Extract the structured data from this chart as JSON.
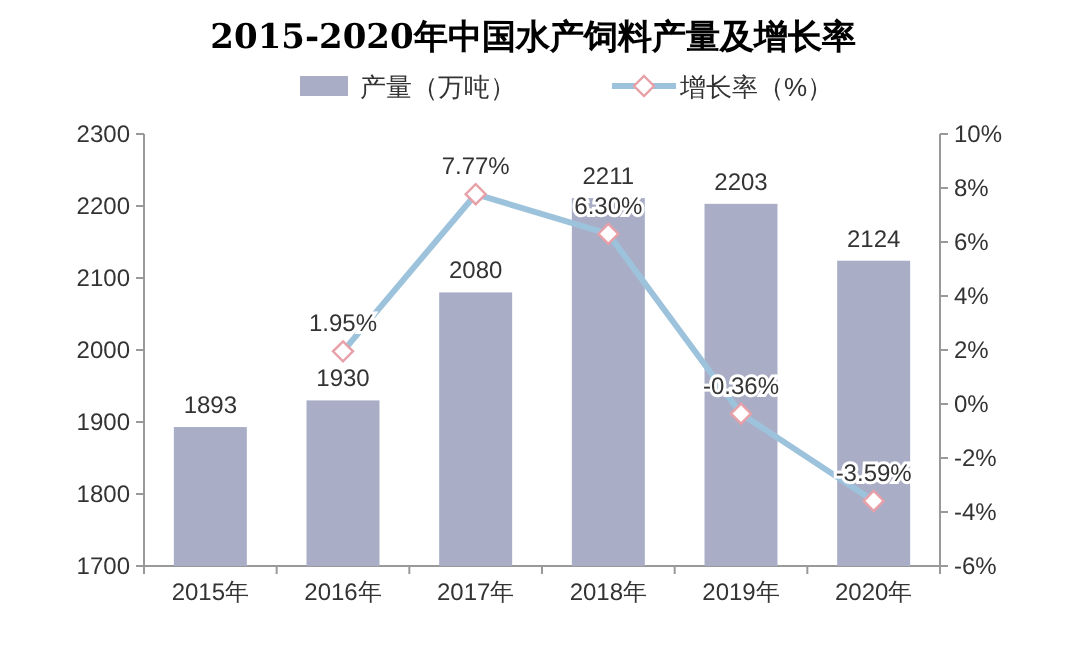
{
  "chart_data": {
    "type": "bar",
    "title": "2015-2020年中国水产饲料产量及增长率",
    "categories": [
      "2015年",
      "2016年",
      "2017年",
      "2018年",
      "2019年",
      "2020年"
    ],
    "series": [
      {
        "name": "产量（万吨）",
        "color": "#a9aec6",
        "values": [
          1893,
          1930,
          2080,
          2211,
          2203,
          2124
        ],
        "value_labels": [
          "1893",
          "1930",
          "2080",
          "2211",
          "2203",
          "2124"
        ]
      },
      {
        "name": "增长率（%）",
        "type": "line",
        "axis": "y2",
        "color": "#9dc3dc",
        "marker": "diamond",
        "values": [
          null,
          1.95,
          7.77,
          6.3,
          -0.36,
          -3.59
        ],
        "value_labels": [
          null,
          "1.95%",
          "7.77%",
          "6.30%",
          "-0.36%",
          "-3.59%"
        ]
      }
    ],
    "ylim": [
      1700,
      2300
    ],
    "yticks": [
      1700,
      1800,
      1900,
      2000,
      2100,
      2200,
      2300
    ],
    "y2lim": [
      -6,
      10
    ],
    "y2ticks": [
      {
        "value": -6,
        "label": "-6%"
      },
      {
        "value": -4,
        "label": "-4%"
      },
      {
        "value": -2,
        "label": "-2%"
      },
      {
        "value": 0,
        "label": "0%"
      },
      {
        "value": 2,
        "label": "2%"
      },
      {
        "value": 4,
        "label": "4%"
      },
      {
        "value": 6,
        "label": "6%"
      },
      {
        "value": 8,
        "label": "8%"
      },
      {
        "value": 10,
        "label": "10%"
      }
    ],
    "legend": "top"
  }
}
